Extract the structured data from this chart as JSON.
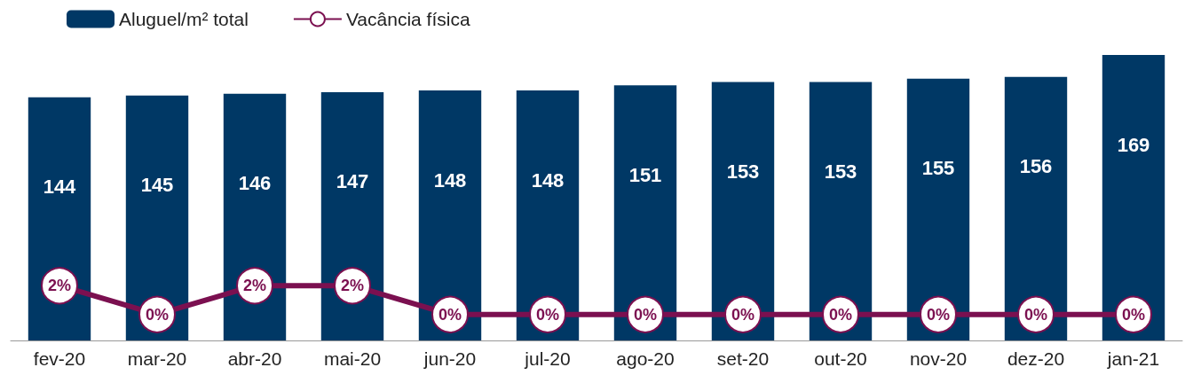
{
  "chart_data": {
    "type": "bar",
    "categories": [
      "fev-20",
      "mar-20",
      "abr-20",
      "mai-20",
      "jun-20",
      "jul-20",
      "ago-20",
      "set-20",
      "out-20",
      "nov-20",
      "dez-20",
      "jan-21"
    ],
    "series": [
      {
        "name": "Aluguel/m² total",
        "color": "#003865",
        "values": [
          144,
          145,
          146,
          147,
          148,
          148,
          151,
          153,
          153,
          155,
          156,
          169
        ],
        "data_labels": true
      },
      {
        "name": "Vacância física",
        "type": "line",
        "axis": "y2",
        "color": "#7b1050",
        "values": [
          2,
          0,
          2,
          2,
          0,
          0,
          0,
          0,
          0,
          0,
          0,
          0
        ],
        "value_labels": [
          "2%",
          "0%",
          "2%",
          "2%",
          "0%",
          "0%",
          "0%",
          "0%",
          "0%",
          "0%",
          "0%",
          "0%"
        ]
      }
    ],
    "marker": "circle",
    "legend": "top left"
  }
}
